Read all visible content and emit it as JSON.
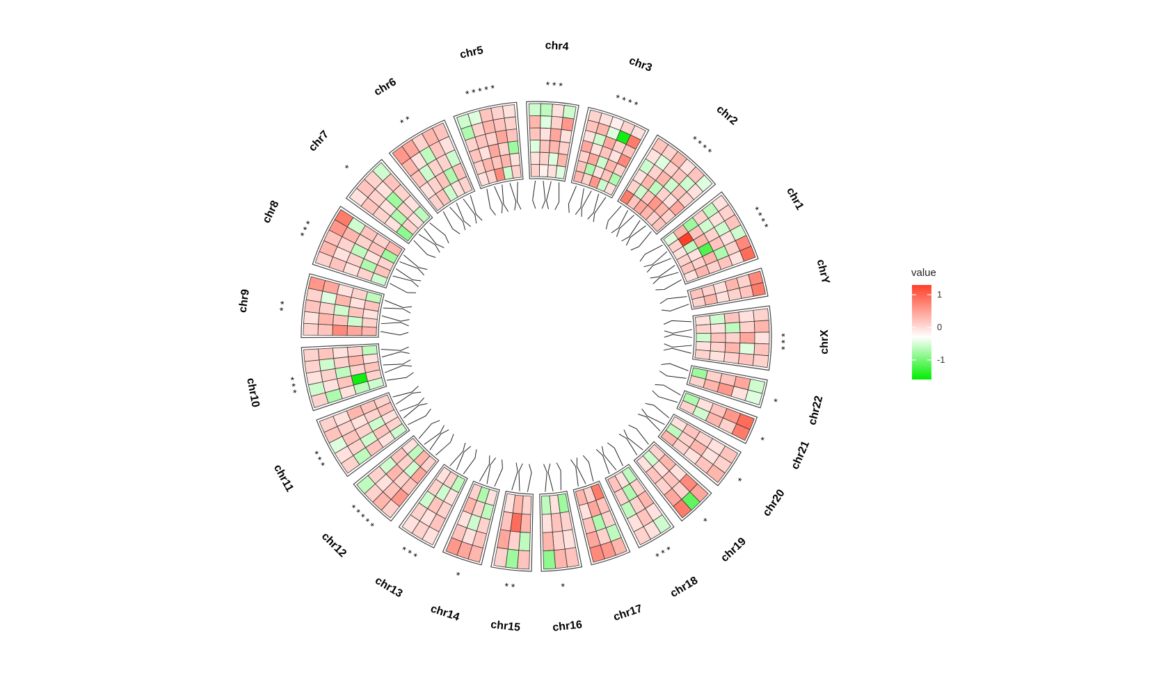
{
  "chart_data": {
    "type": "heatmap",
    "layout": "circular",
    "legend": {
      "title": "value",
      "breaks": [
        1,
        0,
        -1
      ],
      "range": [
        -1.6,
        1.3
      ],
      "colors": {
        "low": "#00ee00",
        "mid": "#ffffff",
        "high": "#ff4028"
      },
      "position": "right"
    },
    "sectors": [
      {
        "name": "chr4",
        "rows": 4,
        "stars": "* *   *",
        "values": [
          [
            0.3,
            0.2,
            -0.2,
            0.4,
            0.5,
            -0.3
          ],
          [
            0.1,
            0.3,
            0.4,
            0.2,
            -0.2,
            -0.4
          ],
          [
            0.2,
            -0.2,
            0.5,
            0.6,
            0.3,
            0.2
          ],
          [
            -0.2,
            0.5,
            0.3,
            0.2,
            0.7,
            -0.3
          ]
        ]
      },
      {
        "name": "chr3",
        "rows": 5,
        "stars": "*   * * *",
        "values": [
          [
            0.5,
            0.4,
            0.3,
            0.6,
            0.2,
            0.4,
            0.3
          ],
          [
            0.3,
            -0.5,
            0.6,
            0.2,
            -0.3,
            0.5,
            0.2
          ],
          [
            0.7,
            0.2,
            -0.3,
            0.4,
            0.6,
            -0.2,
            0.1
          ],
          [
            -0.3,
            0.4,
            0.5,
            0.2,
            0.3,
            -1.5,
            0.3
          ],
          [
            0.2,
            -0.5,
            0.3,
            0.8,
            0.4,
            0.9,
            0.2
          ]
        ]
      },
      {
        "name": "chr2",
        "rows": 6,
        "stars": "* * * *",
        "values": [
          [
            0.9,
            0.3,
            0.2,
            -0.3,
            0.2,
            0.4
          ],
          [
            0.4,
            -0.3,
            0.5,
            0.3,
            -0.2,
            0.3
          ],
          [
            0.6,
            0.4,
            -0.4,
            0.5,
            0.3,
            0.5
          ],
          [
            0.5,
            0.7,
            0.3,
            -0.3,
            0.4,
            0.2
          ],
          [
            0.3,
            0.5,
            0.2,
            0.4,
            -0.3,
            0.4
          ],
          [
            0.4,
            0.3,
            0.6,
            0.3,
            0.2,
            -0.2
          ]
        ]
      },
      {
        "name": "chr1",
        "rows": 6,
        "stars": "* * * *",
        "values": [
          [
            -0.2,
            0.5,
            -0.6,
            0.3,
            -0.4,
            0.2
          ],
          [
            0.3,
            1.3,
            0.4,
            -0.3,
            0.2,
            0.3
          ],
          [
            0.2,
            -0.4,
            0.5,
            0.3,
            -0.3,
            0.4
          ],
          [
            0.3,
            0.2,
            -1.1,
            0.4,
            0.2,
            -0.3
          ],
          [
            0.4,
            0.3,
            0.5,
            -0.5,
            0.3,
            0.8
          ],
          [
            0.2,
            0.5,
            0.3,
            0.4,
            0.2,
            1.0
          ]
        ]
      },
      {
        "name": "chrY",
        "rows": 2,
        "stars": "",
        "values": [
          [
            0.4,
            0.3,
            0.2,
            0.5,
            0.3,
            0.8
          ],
          [
            0.3,
            0.5,
            0.2,
            0.3,
            0.4,
            0.9
          ]
        ]
      },
      {
        "name": "chrX",
        "rows": 5,
        "stars": "* * *",
        "values": [
          [
            0.2,
            -0.3,
            0.4,
            0.2,
            0.3
          ],
          [
            0.3,
            0.2,
            -0.4,
            0.3,
            0.5
          ],
          [
            -0.3,
            0.4,
            0.3,
            0.6,
            0.2
          ],
          [
            0.2,
            0.3,
            0.5,
            -0.2,
            0.4
          ],
          [
            0.3,
            0.2,
            0.3,
            0.4,
            0.3
          ]
        ]
      },
      {
        "name": "chr22",
        "rows": 2,
        "stars": "*",
        "values": [
          [
            -0.6,
            0.3,
            0.4,
            0.6,
            -0.3
          ],
          [
            0.3,
            0.5,
            0.7,
            0.2,
            -0.2
          ]
        ]
      },
      {
        "name": "chr21",
        "rows": 2,
        "stars": "*",
        "values": [
          [
            -0.5,
            0.2,
            0.4,
            0.7,
            1.0
          ],
          [
            0.3,
            -0.3,
            0.5,
            0.3,
            0.9
          ]
        ]
      },
      {
        "name": "chr20",
        "rows": 3,
        "stars": "*",
        "values": [
          [
            0.2,
            0.4,
            0.3,
            0.2,
            0.4
          ],
          [
            -0.4,
            0.3,
            0.5,
            0.2,
            0.3
          ],
          [
            0.5,
            0.3,
            0.2,
            0.4,
            0.5
          ]
        ]
      },
      {
        "name": "chr19",
        "rows": 3,
        "stars": "*",
        "values": [
          [
            0.3,
            0.5,
            0.2,
            0.8,
            0.6
          ],
          [
            -0.3,
            0.2,
            0.4,
            0.3,
            -1.0
          ],
          [
            0.2,
            0.4,
            0.3,
            0.6,
            0.9
          ]
        ]
      },
      {
        "name": "chr18",
        "rows": 3,
        "stars": "* * *",
        "values": [
          [
            -0.4,
            0.3,
            0.5,
            0.2,
            -0.3
          ],
          [
            0.2,
            -0.5,
            0.3,
            0.4,
            0.2
          ],
          [
            0.4,
            0.3,
            -0.4,
            0.2,
            0.3
          ]
        ]
      },
      {
        "name": "chr17",
        "rows": 3,
        "stars": "",
        "values": [
          [
            0.9,
            0.4,
            0.3,
            -0.4,
            0.5
          ],
          [
            0.3,
            0.6,
            -0.5,
            0.3,
            0.7
          ],
          [
            0.5,
            0.2,
            0.4,
            0.6,
            0.8
          ]
        ]
      },
      {
        "name": "chr16",
        "rows": 3,
        "stars": "*",
        "values": [
          [
            -0.6,
            0.3,
            0.2,
            0.4
          ],
          [
            0.2,
            0.4,
            0.3,
            0.5
          ],
          [
            -0.4,
            0.2,
            0.5,
            -0.7
          ]
        ]
      },
      {
        "name": "chr15",
        "rows": 3,
        "stars": "* *",
        "values": [
          [
            0.3,
            0.5,
            -0.4,
            0.4
          ],
          [
            0.5,
            1.0,
            0.3,
            -0.6
          ],
          [
            0.2,
            0.4,
            0.6,
            0.3
          ]
        ]
      },
      {
        "name": "chr14",
        "rows": 3,
        "stars": "*",
        "values": [
          [
            0.2,
            -0.4,
            0.3,
            0.4,
            0.5
          ],
          [
            -0.5,
            0.3,
            -0.3,
            0.2,
            0.6
          ],
          [
            0.3,
            0.5,
            0.2,
            0.4,
            0.7
          ]
        ]
      },
      {
        "name": "chr13",
        "rows": 3,
        "stars": "* * *",
        "values": [
          [
            -0.4,
            0.2,
            0.3,
            0.4,
            0.2
          ],
          [
            0.3,
            -0.3,
            0.4,
            0.2,
            0.3
          ],
          [
            0.2,
            0.3,
            -0.3,
            0.3,
            0.2
          ]
        ]
      },
      {
        "name": "chr12",
        "rows": 4,
        "stars": "* * * * *",
        "values": [
          [
            0.3,
            0.6,
            0.4,
            0.7,
            0.3
          ],
          [
            0.5,
            -0.3,
            0.3,
            0.4,
            0.5
          ],
          [
            -0.4,
            0.3,
            0.5,
            0.2,
            0.3
          ],
          [
            0.2,
            0.4,
            -0.3,
            0.3,
            -0.4
          ]
        ]
      },
      {
        "name": "chr11",
        "rows": 5,
        "stars": "* * *",
        "values": [
          [
            -0.3,
            0.2,
            0.4,
            -0.4,
            0.3
          ],
          [
            0.3,
            0.4,
            -0.3,
            0.3,
            0.2
          ],
          [
            0.2,
            -0.3,
            0.3,
            0.4,
            -0.2
          ],
          [
            0.4,
            0.3,
            0.2,
            0.3,
            0.4
          ],
          [
            0.3,
            0.4,
            0.5,
            0.2,
            0.3
          ]
        ]
      },
      {
        "name": "chr10",
        "rows": 5,
        "stars": "* * *",
        "values": [
          [
            -0.3,
            -0.4,
            0.2,
            -0.5,
            0.3
          ],
          [
            0.3,
            -1.5,
            0.4,
            0.2,
            -0.3
          ],
          [
            0.4,
            0.3,
            -0.4,
            0.3,
            0.2
          ],
          [
            0.2,
            0.5,
            0.3,
            -0.3,
            0.3
          ],
          [
            -0.4,
            0.3,
            0.2,
            0.4,
            0.3
          ]
        ]
      },
      {
        "name": "chr9",
        "rows": 5,
        "stars": "* *",
        "values": [
          [
            0.5,
            0.6,
            0.8,
            0.4,
            0.3
          ],
          [
            0.3,
            -0.3,
            0.4,
            0.5,
            0.2
          ],
          [
            0.2,
            0.4,
            -0.3,
            0.3,
            0.4
          ],
          [
            0.4,
            0.2,
            0.5,
            -0.2,
            0.3
          ],
          [
            -0.4,
            0.3,
            0.2,
            0.6,
            0.7
          ]
        ]
      },
      {
        "name": "chr8",
        "rows": 5,
        "stars": "* * *",
        "values": [
          [
            -0.3,
            0.3,
            0.2,
            0.4,
            0.3
          ],
          [
            0.4,
            -0.5,
            0.3,
            0.2,
            0.5
          ],
          [
            0.3,
            0.2,
            -0.4,
            0.3,
            0.4
          ],
          [
            -0.6,
            0.4,
            0.3,
            0.5,
            0.7
          ],
          [
            0.5,
            0.3,
            0.4,
            -0.3,
            0.9
          ]
        ]
      },
      {
        "name": "chr7",
        "rows": 4,
        "stars": "*",
        "values": [
          [
            -0.7,
            0.2,
            0.3,
            0.4,
            0.2
          ],
          [
            0.3,
            -0.5,
            0.2,
            0.3,
            0.4
          ],
          [
            0.2,
            0.3,
            -0.6,
            0.2,
            0.3
          ],
          [
            -0.4,
            0.2,
            0.3,
            0.4,
            -0.3
          ]
        ]
      },
      {
        "name": "chr6",
        "rows": 5,
        "stars": "* *",
        "values": [
          [
            0.3,
            0.2,
            0.4,
            0.5,
            0.7
          ],
          [
            0.4,
            0.3,
            -0.3,
            0.2,
            0.6
          ],
          [
            -0.3,
            0.4,
            0.3,
            -0.4,
            0.3
          ],
          [
            0.2,
            -0.5,
            0.3,
            0.4,
            0.5
          ],
          [
            0.3,
            0.4,
            -0.3,
            0.2,
            0.4
          ]
        ]
      },
      {
        "name": "chr5",
        "rows": 5,
        "stars": "* * *   * *",
        "values": [
          [
            0.2,
            0.3,
            0.4,
            0.3,
            -0.5,
            -0.3
          ],
          [
            0.3,
            0.5,
            0.2,
            0.4,
            0.3,
            -0.2
          ],
          [
            0.8,
            0.4,
            0.6,
            0.3,
            0.5,
            0.4
          ],
          [
            -0.3,
            0.5,
            0.3,
            0.6,
            0.4,
            0.3
          ],
          [
            0.3,
            0.2,
            -0.6,
            0.4,
            0.3,
            0.2
          ]
        ]
      }
    ]
  }
}
